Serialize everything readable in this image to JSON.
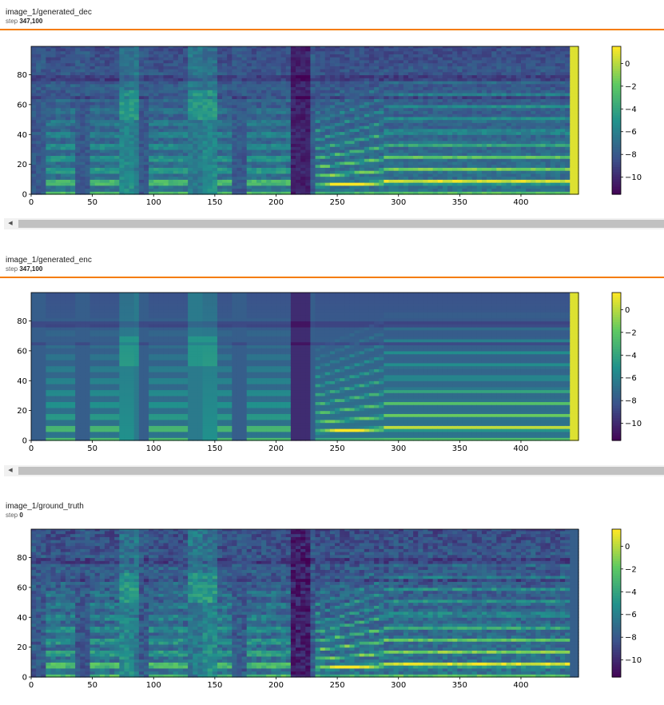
{
  "cards": [
    {
      "title": "image_1/generated_dec",
      "step_label": "step",
      "step_value": "347,100",
      "has_scrollbar": true,
      "style": "dec"
    },
    {
      "title": "image_1/generated_enc",
      "step_label": "step",
      "step_value": "347,100",
      "has_scrollbar": true,
      "style": "enc"
    },
    {
      "title": "image_1/ground_truth",
      "step_label": "step",
      "step_value": "0",
      "has_scrollbar": false,
      "style": "gt"
    }
  ],
  "chart_data": [
    {
      "type": "heatmap",
      "title": "",
      "xlabel": "",
      "ylabel": "",
      "xlim": [
        0,
        447
      ],
      "ylim": [
        0,
        99
      ],
      "x_ticks": [
        "0",
        "50",
        "100",
        "150",
        "200",
        "250",
        "300",
        "350",
        "400"
      ],
      "y_ticks": [
        "0",
        "20",
        "40",
        "60",
        "80"
      ],
      "colorbar_ticks": [
        "0",
        "−2",
        "−4",
        "−6",
        "−8",
        "−10"
      ],
      "colorbar_range": [
        -11.5,
        1.5
      ],
      "colormap": "viridis"
    },
    {
      "type": "heatmap",
      "title": "",
      "xlabel": "",
      "ylabel": "",
      "xlim": [
        0,
        447
      ],
      "ylim": [
        0,
        99
      ],
      "x_ticks": [
        "0",
        "50",
        "100",
        "150",
        "200",
        "250",
        "300",
        "350",
        "400"
      ],
      "y_ticks": [
        "0",
        "20",
        "40",
        "60",
        "80"
      ],
      "colorbar_ticks": [
        "0",
        "−2",
        "−4",
        "−6",
        "−8",
        "−10"
      ],
      "colorbar_range": [
        -11.5,
        1.5
      ],
      "colormap": "viridis"
    },
    {
      "type": "heatmap",
      "title": "",
      "xlabel": "",
      "ylabel": "",
      "xlim": [
        0,
        447
      ],
      "ylim": [
        0,
        99
      ],
      "x_ticks": [
        "0",
        "50",
        "100",
        "150",
        "200",
        "250",
        "300",
        "350",
        "400"
      ],
      "y_ticks": [
        "0",
        "20",
        "40",
        "60",
        "80"
      ],
      "colorbar_ticks": [
        "0",
        "−2",
        "−4",
        "−6",
        "−8",
        "−10"
      ],
      "colorbar_range": [
        -11.5,
        1.5
      ],
      "colormap": "viridis"
    }
  ]
}
